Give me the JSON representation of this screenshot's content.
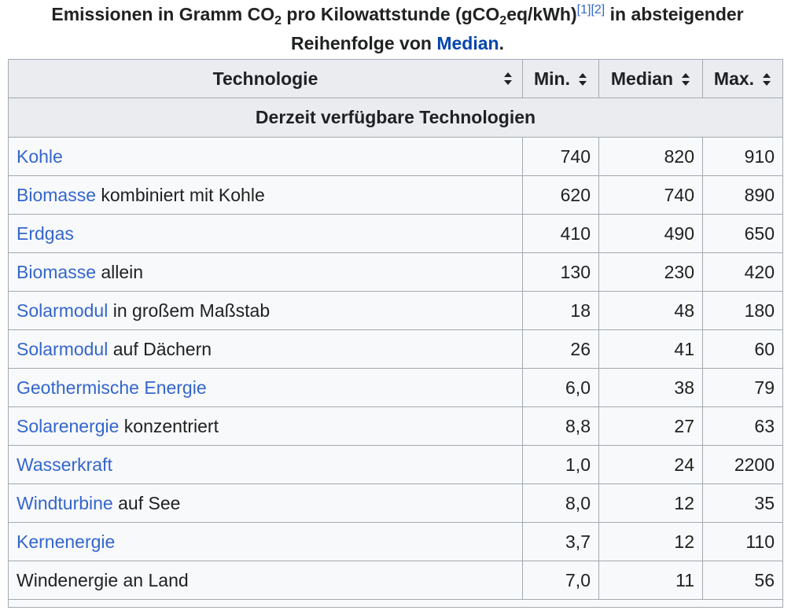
{
  "caption": {
    "line1_pre": "Emissionen in Gramm CO",
    "sub1": "2",
    "line1_mid": " pro Kilowattstunde (gCO",
    "sub2": "2",
    "line1_post": "eq/kWh)",
    "ref1": "[1]",
    "ref2": "[2]",
    "line1_tail": " in absteigender",
    "line2_pre": "Reihenfolge von ",
    "line2_link": "Median",
    "line2_post": "."
  },
  "headers": {
    "technology": "Technologie",
    "min": "Min.",
    "median": "Median",
    "max": "Max."
  },
  "section_title": "Derzeit verfügbare Technologien",
  "rows": [
    {
      "link": "Kohle",
      "rest": "",
      "min": "740",
      "median": "820",
      "max": "910"
    },
    {
      "link": "Biomasse",
      "rest": " kombiniert mit Kohle",
      "min": "620",
      "median": "740",
      "max": "890"
    },
    {
      "link": "Erdgas",
      "rest": "",
      "min": "410",
      "median": "490",
      "max": "650"
    },
    {
      "link": "Biomasse",
      "rest": " allein",
      "min": "130",
      "median": "230",
      "max": "420"
    },
    {
      "link": "Solarmodul",
      "rest": " in großem Maßstab",
      "min": "18",
      "median": "48",
      "max": "180"
    },
    {
      "link": "Solarmodul",
      "rest": " auf Dächern",
      "min": "26",
      "median": "41",
      "max": "60"
    },
    {
      "link": "Geothermische Energie",
      "rest": "",
      "min": "6,0",
      "median": "38",
      "max": "79"
    },
    {
      "link": "Solarenergie",
      "rest": " konzentriert",
      "min": "8,8",
      "median": "27",
      "max": "63"
    },
    {
      "link": "Wasserkraft",
      "rest": "",
      "min": "1,0",
      "median": "24",
      "max": "2200"
    },
    {
      "link": "Windturbine",
      "rest": " auf See",
      "min": "8,0",
      "median": "12",
      "max": "35"
    },
    {
      "link": "Kernenergie",
      "rest": "",
      "min": "3,7",
      "median": "12",
      "max": "110"
    },
    {
      "link": "",
      "rest": "Windenergie an Land",
      "min": "7,0",
      "median": "11",
      "max": "56"
    }
  ]
}
